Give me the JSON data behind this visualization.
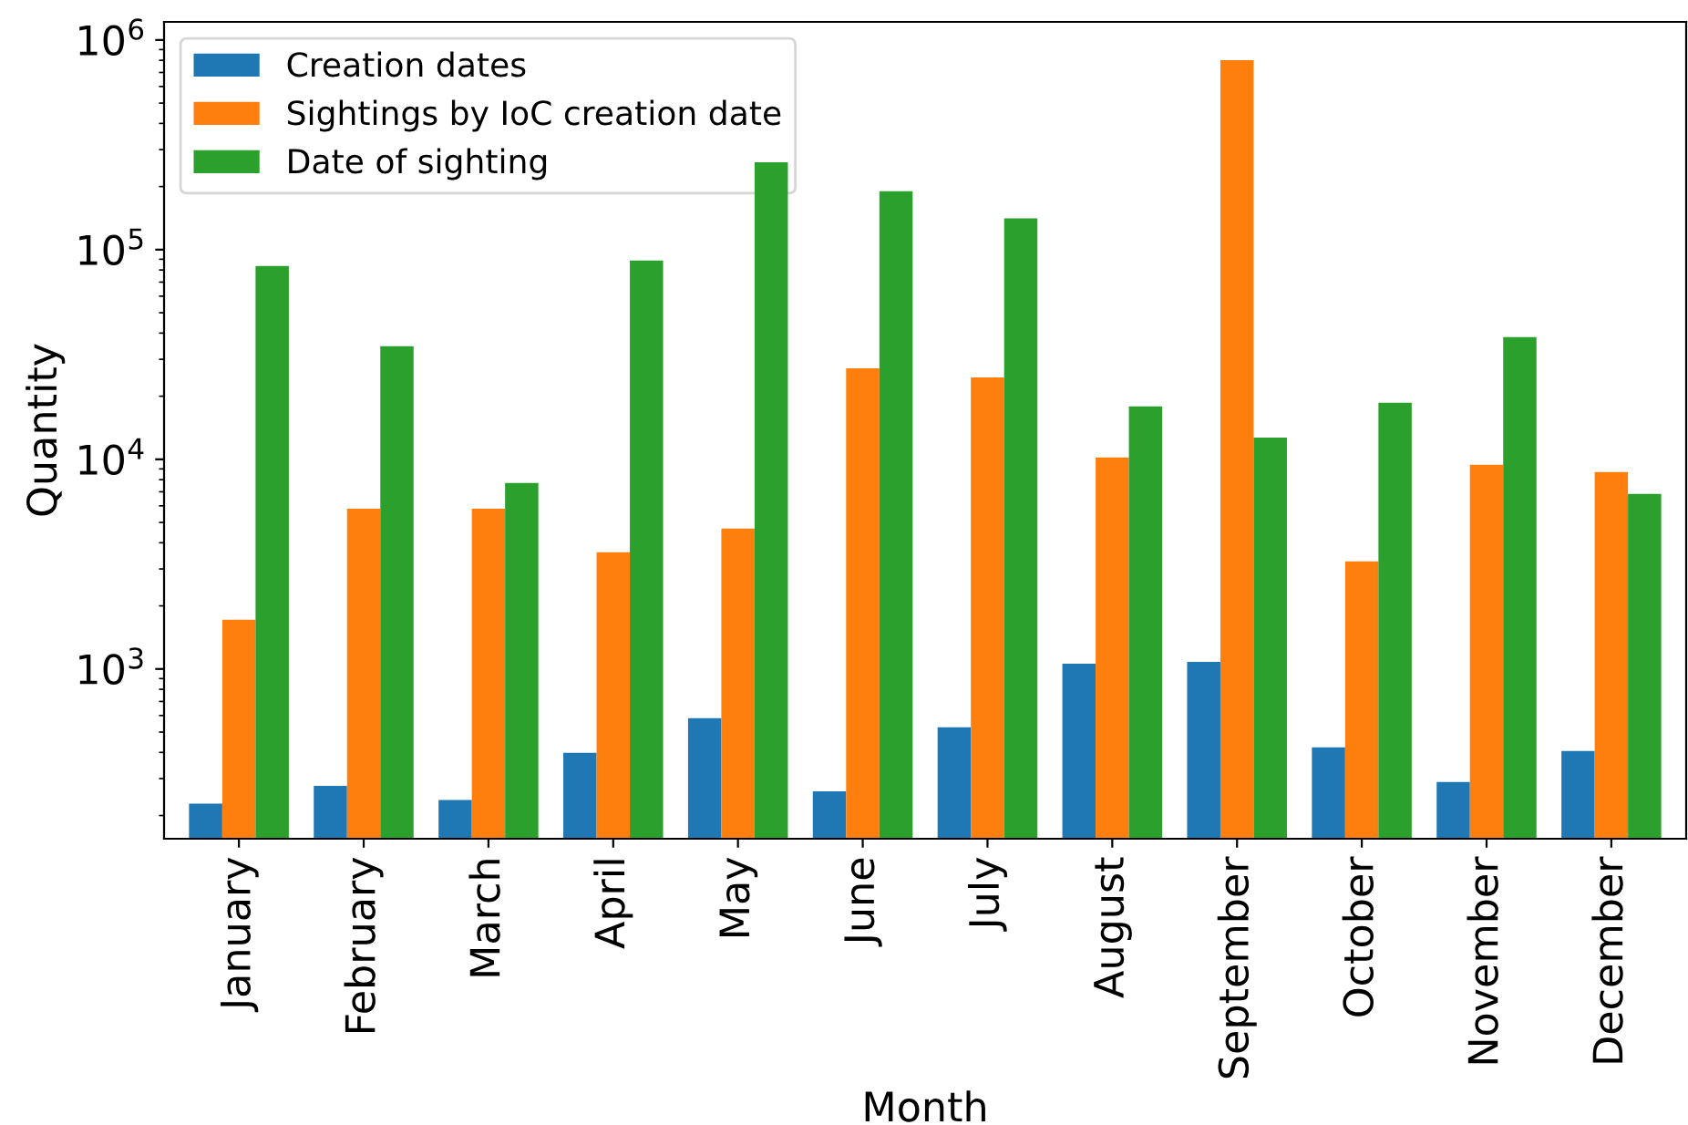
{
  "chart_data": {
    "type": "bar",
    "xlabel": "Month",
    "ylabel": "Quantity",
    "categories": [
      "January",
      "February",
      "March",
      "April",
      "May",
      "June",
      "July",
      "August",
      "September",
      "October",
      "November",
      "December"
    ],
    "series": [
      {
        "name": "Creation dates",
        "color": "#1f77b4",
        "values": [
          228,
          277,
          237,
          398,
          582,
          261,
          527,
          1060,
          1080,
          423,
          289,
          406
        ]
      },
      {
        "name": "Sightings by IoC creation date",
        "color": "#ff7f0e",
        "values": [
          1720,
          5820,
          5820,
          3600,
          4680,
          27200,
          24600,
          10200,
          802000,
          3260,
          9420,
          8690
        ]
      },
      {
        "name": "Date of sighting",
        "color": "#2ca02c",
        "values": [
          83500,
          34600,
          7710,
          88700,
          261000,
          190000,
          141000,
          17900,
          12700,
          18600,
          38300,
          6840
        ]
      }
    ],
    "log": "y",
    "ylim": [
      155,
      1220000
    ],
    "yticks": [
      {
        "value": 1000,
        "label": "10$^{3}$"
      },
      {
        "value": 10000,
        "label": "10$^{4}$"
      },
      {
        "value": 100000,
        "label": "10$^{5}$"
      },
      {
        "value": 1000000,
        "label": "10$^{6}$"
      }
    ],
    "grid": false,
    "legend": "top left"
  }
}
